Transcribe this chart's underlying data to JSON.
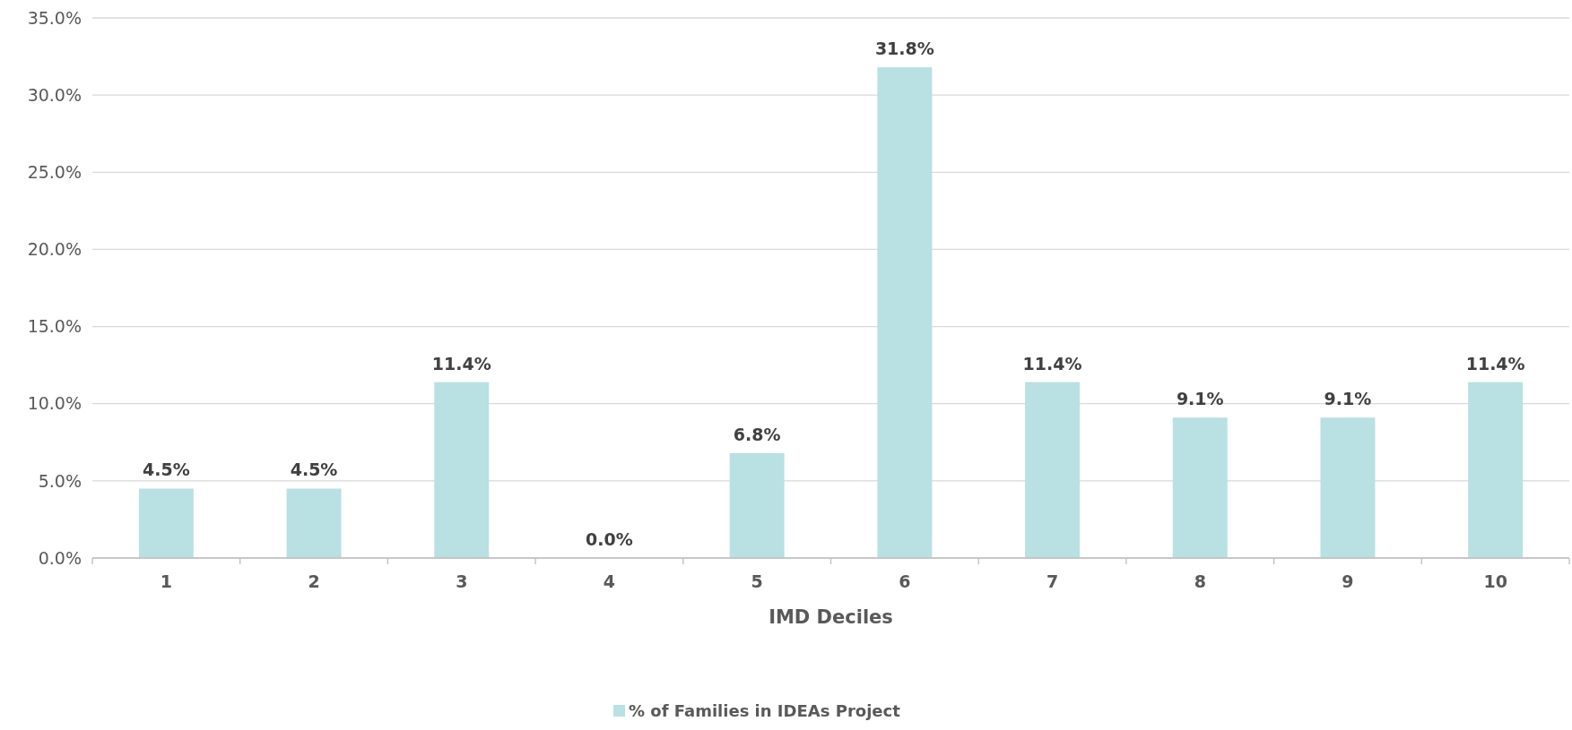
{
  "chart_data": {
    "type": "bar",
    "xlabel": "IMD Deciles",
    "categories": [
      "1",
      "2",
      "3",
      "4",
      "5",
      "6",
      "7",
      "8",
      "9",
      "10"
    ],
    "series": [
      {
        "name": "% of Families in IDEAs Project",
        "color": "#b9e0e3",
        "values": [
          4.5,
          4.5,
          11.4,
          0.0,
          6.8,
          31.8,
          11.4,
          9.1,
          9.1,
          11.4
        ],
        "value_labels": [
          "4.5%",
          "4.5%",
          "11.4%",
          "0.0%",
          "6.8%",
          "31.8%",
          "11.4%",
          "9.1%",
          "9.1%",
          "11.4%"
        ]
      }
    ],
    "ylim": [
      0,
      35
    ],
    "yticks": [
      {
        "value": 0,
        "label": "0.0%"
      },
      {
        "value": 5,
        "label": "5.0%"
      },
      {
        "value": 10,
        "label": "10.0%"
      },
      {
        "value": 15,
        "label": "15.0%"
      },
      {
        "value": 20,
        "label": "20.0%"
      },
      {
        "value": 25,
        "label": "25.0%"
      },
      {
        "value": 30,
        "label": "30.0%"
      },
      {
        "value": 35,
        "label": "35.0%"
      }
    ],
    "grid": "y",
    "legend": "bottom"
  }
}
